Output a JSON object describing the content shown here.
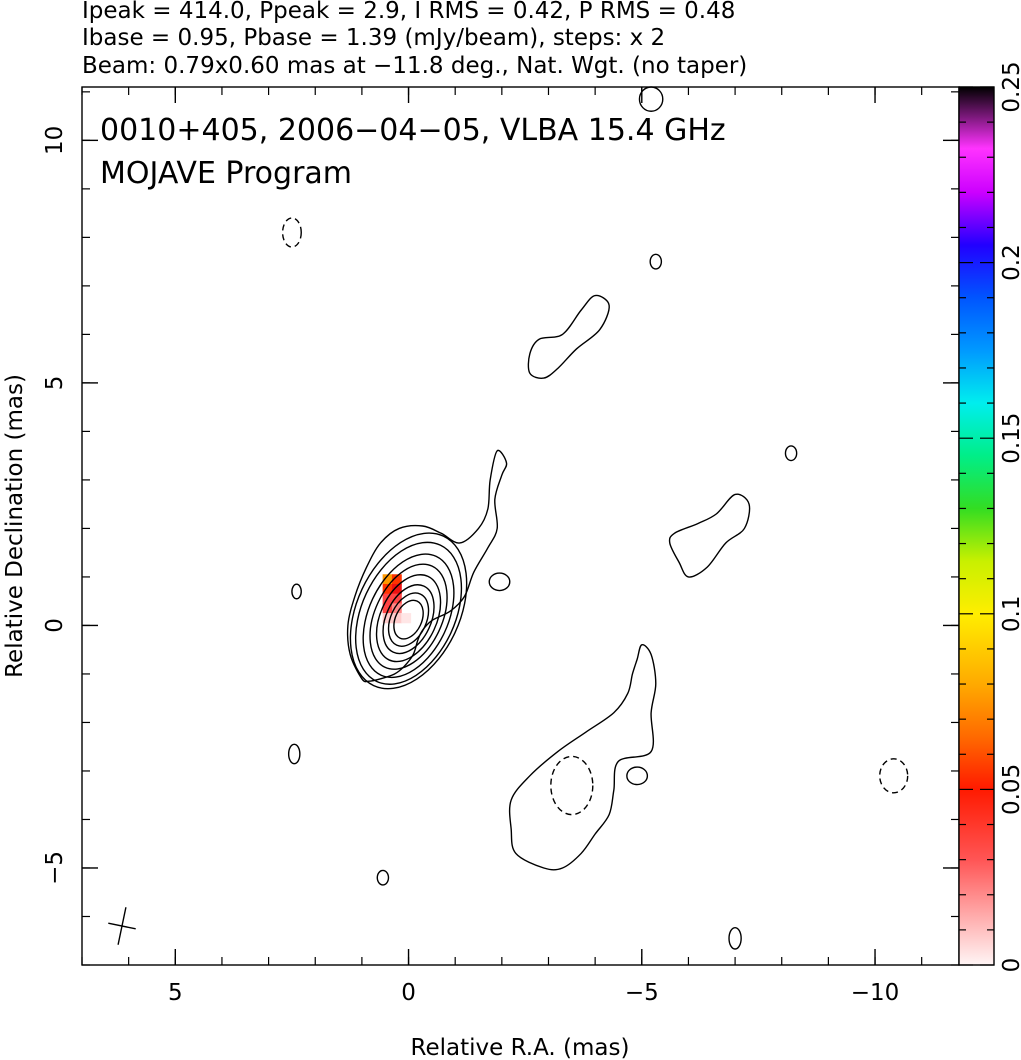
{
  "header": {
    "line1": "Ipeak = 414.0, Ppeak = 2.9, I RMS = 0.42, P RMS = 0.48",
    "line2": "Ibase = 0.95, Pbase = 1.39 (mJy/beam), steps: x 2",
    "line3": "Beam: 0.79x0.60 mas at −11.8 deg., Nat. Wgt. (no taper)"
  },
  "annotation": {
    "line1": "0010+405, 2006−04−05, VLBA 15.4 GHz",
    "line2": "MOJAVE Program"
  },
  "chart_data": {
    "type": "contour",
    "xlabel": "Relative R.A. (mas)",
    "ylabel": "Relative Declination (mas)",
    "xlim": [
      7.0,
      -11.8
    ],
    "ylim": [
      -7.0,
      11.1
    ],
    "x_ticks": [
      5,
      0,
      -5,
      -10
    ],
    "x_tick_labels": [
      "5",
      "0",
      "−5",
      "−10"
    ],
    "y_ticks": [
      -5,
      0,
      5,
      10
    ],
    "y_tick_labels": [
      "−5",
      "0",
      "5",
      "10"
    ],
    "colorbar": {
      "ticks": [
        0,
        0.05,
        0.1,
        0.15,
        0.2,
        0.25
      ],
      "tick_labels": [
        "0",
        "0.05",
        "0.1",
        "0.15",
        "0.2",
        "0.25"
      ],
      "range": [
        0,
        0.25
      ]
    },
    "peak_intensity_mJy_per_beam": 414.0,
    "peak_polarized_mJy_per_beam": 2.9,
    "i_rms": 0.42,
    "p_rms": 0.48,
    "i_base": 0.95,
    "p_base": 1.39,
    "contour_step_factor": 2,
    "beam": {
      "major_mas": 0.79,
      "minor_mas": 0.6,
      "pa_deg": -11.8
    },
    "core": {
      "x": -0.05,
      "y": 0.15
    },
    "core_contours": [
      {
        "level": 1,
        "points": [
          [
            1.0,
            -1.1
          ],
          [
            0.85,
            -1.15
          ],
          [
            0.6,
            -1.1
          ],
          [
            0.3,
            -1.0
          ],
          [
            0.1,
            -0.85
          ],
          [
            -0.1,
            -0.6
          ],
          [
            -0.2,
            -0.3
          ],
          [
            -0.3,
            -0.1
          ],
          [
            -0.5,
            0.1
          ],
          [
            -0.9,
            0.3
          ],
          [
            -1.2,
            0.6
          ],
          [
            -1.4,
            1.1
          ],
          [
            -1.7,
            1.6
          ],
          [
            -1.9,
            2.0
          ],
          [
            -1.85,
            2.6
          ],
          [
            -2.0,
            3.1
          ],
          [
            -2.1,
            3.35
          ],
          [
            -1.9,
            3.6
          ],
          [
            -1.75,
            3.0
          ],
          [
            -1.7,
            2.4
          ],
          [
            -1.5,
            2.0
          ],
          [
            -1.1,
            1.7
          ],
          [
            -0.7,
            1.9
          ],
          [
            -0.3,
            2.05
          ],
          [
            0.2,
            2.0
          ],
          [
            0.6,
            1.7
          ],
          [
            0.9,
            1.2
          ],
          [
            1.15,
            0.6
          ],
          [
            1.3,
            0.0
          ],
          [
            1.25,
            -0.6
          ]
        ]
      },
      {
        "level": 2,
        "rx": 1.1,
        "ry": 1.7,
        "cx": 0.0,
        "cy": 0.3,
        "rot": 25
      },
      {
        "level": 4,
        "rx": 1.0,
        "ry": 1.55,
        "cx": 0.0,
        "cy": 0.25,
        "rot": 25
      },
      {
        "level": 8,
        "rx": 0.85,
        "ry": 1.35,
        "cx": 0.0,
        "cy": 0.2,
        "rot": 25
      },
      {
        "level": 16,
        "rx": 0.72,
        "ry": 1.15,
        "cx": 0.0,
        "cy": 0.18,
        "rot": 25
      },
      {
        "level": 32,
        "rx": 0.6,
        "ry": 0.95,
        "cx": 0.0,
        "cy": 0.15,
        "rot": 25
      },
      {
        "level": 64,
        "rx": 0.48,
        "ry": 0.75,
        "cx": 0.0,
        "cy": 0.13,
        "rot": 25
      },
      {
        "level": 128,
        "rx": 0.38,
        "ry": 0.58,
        "cx": 0.0,
        "cy": 0.12,
        "rot": 25
      },
      {
        "level": 256,
        "rx": 0.28,
        "ry": 0.42,
        "cx": 0.0,
        "cy": 0.12,
        "rot": 25
      }
    ],
    "extended_contours": [
      {
        "name": "south-west jet",
        "points": [
          [
            -5.0,
            -0.4
          ],
          [
            -5.2,
            -0.6
          ],
          [
            -5.3,
            -1.2
          ],
          [
            -5.2,
            -1.8
          ],
          [
            -5.2,
            -2.6
          ],
          [
            -4.5,
            -2.8
          ],
          [
            -4.4,
            -3.4
          ],
          [
            -4.3,
            -3.9
          ],
          [
            -4.0,
            -4.3
          ],
          [
            -3.7,
            -4.7
          ],
          [
            -3.3,
            -5.0
          ],
          [
            -2.9,
            -5.0
          ],
          [
            -2.3,
            -4.7
          ],
          [
            -2.2,
            -4.2
          ],
          [
            -2.2,
            -3.6
          ],
          [
            -2.6,
            -3.1
          ],
          [
            -3.2,
            -2.6
          ],
          [
            -3.8,
            -2.2
          ],
          [
            -4.4,
            -1.8
          ],
          [
            -4.7,
            -1.4
          ],
          [
            -4.8,
            -1.0
          ],
          [
            -4.9,
            -0.7
          ]
        ]
      },
      {
        "name": "north-west blob",
        "points": [
          [
            -2.6,
            5.6
          ],
          [
            -2.8,
            5.9
          ],
          [
            -3.3,
            6.0
          ],
          [
            -3.7,
            6.5
          ],
          [
            -4.0,
            6.8
          ],
          [
            -4.3,
            6.6
          ],
          [
            -4.1,
            6.1
          ],
          [
            -3.6,
            5.7
          ],
          [
            -3.2,
            5.3
          ],
          [
            -2.9,
            5.1
          ],
          [
            -2.6,
            5.2
          ]
        ]
      },
      {
        "name": "west blob",
        "points": [
          [
            -5.6,
            1.7
          ],
          [
            -5.7,
            1.9
          ],
          [
            -6.2,
            2.1
          ],
          [
            -6.6,
            2.3
          ],
          [
            -7.0,
            2.7
          ],
          [
            -7.3,
            2.5
          ],
          [
            -7.2,
            2.0
          ],
          [
            -6.8,
            1.7
          ],
          [
            -6.4,
            1.2
          ],
          [
            -6.0,
            1.0
          ],
          [
            -5.8,
            1.3
          ]
        ]
      }
    ],
    "small_features": [
      {
        "x": -1.95,
        "y": 0.9,
        "rx": 0.22,
        "ry": 0.18
      },
      {
        "x": 2.4,
        "y": 0.7,
        "rx": 0.1,
        "ry": 0.15
      },
      {
        "x": 2.45,
        "y": -2.65,
        "rx": 0.12,
        "ry": 0.2
      },
      {
        "x": 0.55,
        "y": -5.2,
        "rx": 0.12,
        "ry": 0.15
      },
      {
        "x": -5.3,
        "y": 7.5,
        "rx": 0.12,
        "ry": 0.15
      },
      {
        "x": -8.2,
        "y": 3.55,
        "rx": 0.12,
        "ry": 0.15
      },
      {
        "x": -7.0,
        "y": -6.45,
        "rx": 0.13,
        "ry": 0.22
      },
      {
        "x": -4.9,
        "y": -3.1,
        "rx": 0.22,
        "ry": 0.18
      },
      {
        "x": -5.2,
        "y": 10.85,
        "rx": 0.25,
        "ry": 0.25
      }
    ],
    "negative_features": [
      {
        "x": 2.5,
        "y": 8.1,
        "rx": 0.2,
        "ry": 0.3
      },
      {
        "x": -3.5,
        "y": -3.3,
        "rx": 0.45,
        "ry": 0.6
      },
      {
        "x": -10.4,
        "y": -3.1,
        "rx": 0.3,
        "ry": 0.35
      }
    ],
    "polarization_pixels": [
      {
        "x": 0.45,
        "y": 0.95,
        "value": 0.075
      },
      {
        "x": 0.25,
        "y": 0.95,
        "value": 0.065
      },
      {
        "x": 0.45,
        "y": 0.75,
        "value": 0.06
      },
      {
        "x": 0.25,
        "y": 0.75,
        "value": 0.05
      },
      {
        "x": 0.45,
        "y": 0.55,
        "value": 0.045
      },
      {
        "x": 0.25,
        "y": 0.55,
        "value": 0.04
      },
      {
        "x": 0.45,
        "y": 0.35,
        "value": 0.038
      },
      {
        "x": 0.25,
        "y": 0.35,
        "value": 0.03
      },
      {
        "x": 0.45,
        "y": 0.15,
        "value": 0.015
      },
      {
        "x": 0.25,
        "y": 0.15,
        "value": 0.012
      },
      {
        "x": 0.05,
        "y": 0.15,
        "value": 0.006
      }
    ]
  }
}
